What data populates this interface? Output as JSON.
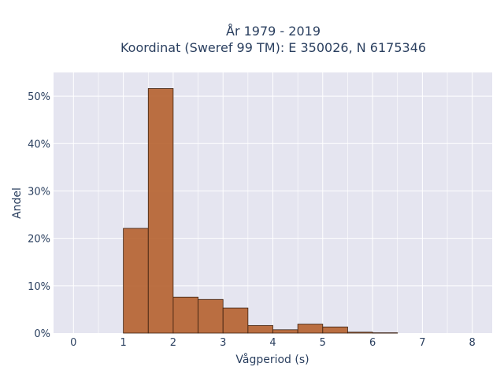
{
  "chart_data": {
    "type": "bar",
    "title_line1": "År 1979 - 2019",
    "title_line2": "Koordinat (Sweref 99 TM): E 350026, N 6175346",
    "xlabel": "Vågperiod (s)",
    "ylabel": "Andel",
    "x_ticks": [
      "0",
      "1",
      "2",
      "3",
      "4",
      "5",
      "6",
      "7",
      "8"
    ],
    "y_ticks": [
      "0%",
      "10%",
      "20%",
      "30%",
      "40%",
      "50%"
    ],
    "xlim": [
      -0.4,
      8.4
    ],
    "ylim": [
      0,
      0.55
    ],
    "bin_width": 0.5,
    "bins": [
      {
        "x0": 1.0,
        "value": 0.221
      },
      {
        "x0": 1.5,
        "value": 0.516
      },
      {
        "x0": 2.0,
        "value": 0.076
      },
      {
        "x0": 2.5,
        "value": 0.071
      },
      {
        "x0": 3.0,
        "value": 0.053
      },
      {
        "x0": 3.5,
        "value": 0.016
      },
      {
        "x0": 4.0,
        "value": 0.007
      },
      {
        "x0": 4.5,
        "value": 0.019
      },
      {
        "x0": 5.0,
        "value": 0.013
      },
      {
        "x0": 5.5,
        "value": 0.002
      },
      {
        "x0": 6.0,
        "value": 0.0007
      }
    ],
    "bar_color": "#b5602e",
    "bar_outline": "#3a2010",
    "plot_bg": "#e5e5f0",
    "grid": true,
    "legend": "none"
  }
}
